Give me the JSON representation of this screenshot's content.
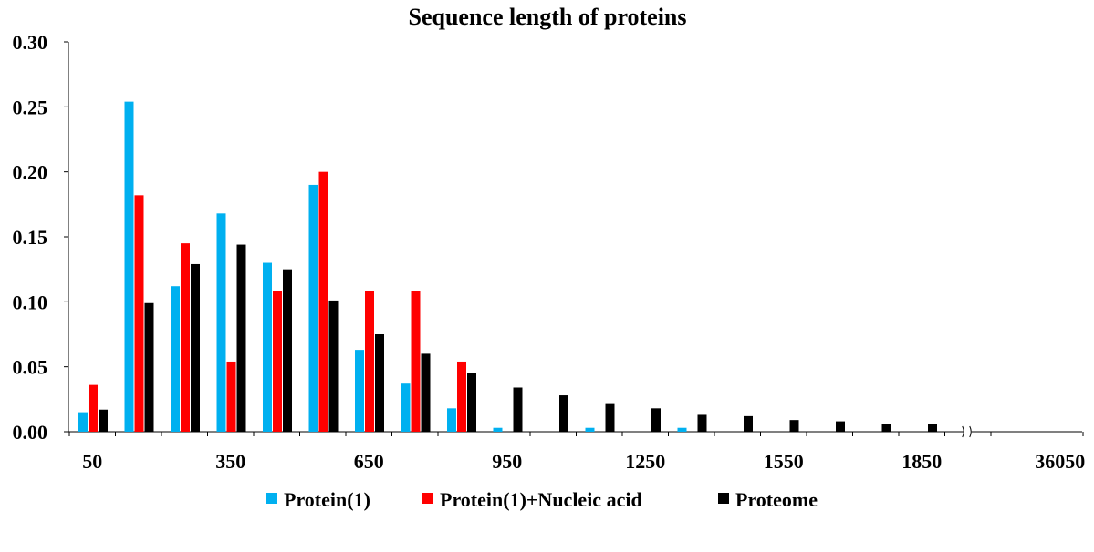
{
  "chart_data": {
    "type": "bar",
    "title": "Sequence length of proteins",
    "xlabel": "",
    "ylabel": "",
    "ylim": [
      0,
      0.3
    ],
    "y_ticks": [
      "0.00",
      "0.05",
      "0.10",
      "0.15",
      "0.20",
      "0.25",
      "0.30"
    ],
    "x_tick_labels": [
      "50",
      "350",
      "650",
      "950",
      "1250",
      "1550",
      "1850",
      "36050"
    ],
    "x_tick_label_positions": [
      0,
      3,
      6,
      9,
      12,
      15,
      18,
      21
    ],
    "axis_break_after_category": 19,
    "legend_position": "bottom",
    "grid": false,
    "colors": {
      "Protein(1)": "#00B0F0",
      "Protein(1)+Nucleic acid": "#FF0000",
      "Proteome": "#000000"
    },
    "series": [
      {
        "name": "Protein(1)",
        "color": "#00B0F0",
        "values": [
          0.015,
          0.254,
          0.112,
          0.168,
          0.13,
          0.19,
          0.063,
          0.037,
          0.018,
          0.003,
          0,
          0.003,
          0,
          0.003,
          0,
          0,
          0,
          0,
          0,
          0,
          0,
          0
        ]
      },
      {
        "name": "Protein(1)+Nucleic acid",
        "color": "#FF0000",
        "values": [
          0.036,
          0.182,
          0.145,
          0.054,
          0.108,
          0.2,
          0.108,
          0.108,
          0.054,
          0,
          0,
          0,
          0,
          0,
          0,
          0,
          0,
          0,
          0,
          0,
          0,
          0
        ]
      },
      {
        "name": "Proteome",
        "color": "#000000",
        "values": [
          0.017,
          0.099,
          0.129,
          0.144,
          0.125,
          0.101,
          0.075,
          0.06,
          0.045,
          0.034,
          0.028,
          0.022,
          0.018,
          0.013,
          0.012,
          0.009,
          0.008,
          0.006,
          0.006,
          0,
          0,
          0
        ]
      }
    ]
  }
}
